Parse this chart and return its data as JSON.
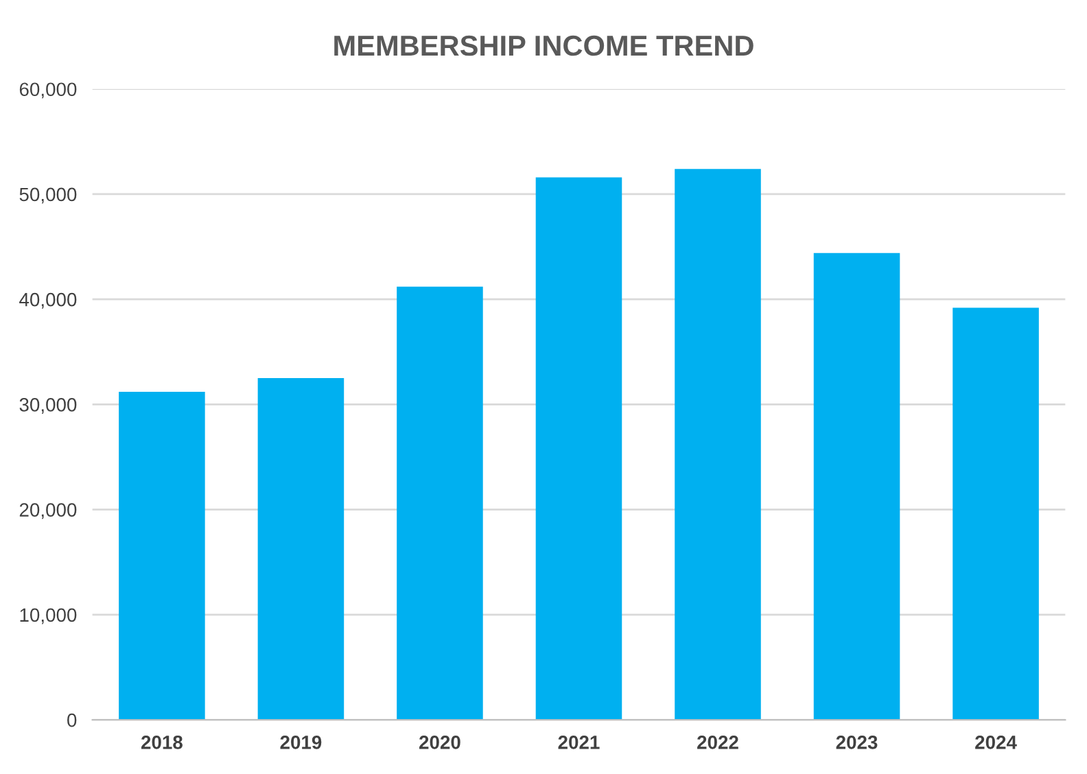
{
  "chart_data": {
    "type": "bar",
    "title": "MEMBERSHIP INCOME TREND",
    "categories": [
      "2018",
      "2019",
      "2020",
      "2021",
      "2022",
      "2023",
      "2024"
    ],
    "values": [
      31200,
      32500,
      41200,
      51600,
      52400,
      44400,
      39200
    ],
    "color": "#00b0f0",
    "ylim": [
      0,
      60000
    ],
    "yticks": [
      {
        "value": 0,
        "label": "0"
      },
      {
        "value": 10000,
        "label": "10,000"
      },
      {
        "value": 20000,
        "label": "20,000"
      },
      {
        "value": 30000,
        "label": "30,000"
      },
      {
        "value": 40000,
        "label": "40,000"
      },
      {
        "value": 50000,
        "label": "50,000"
      },
      {
        "value": 60000,
        "label": "60,000"
      }
    ],
    "grid": "y"
  }
}
